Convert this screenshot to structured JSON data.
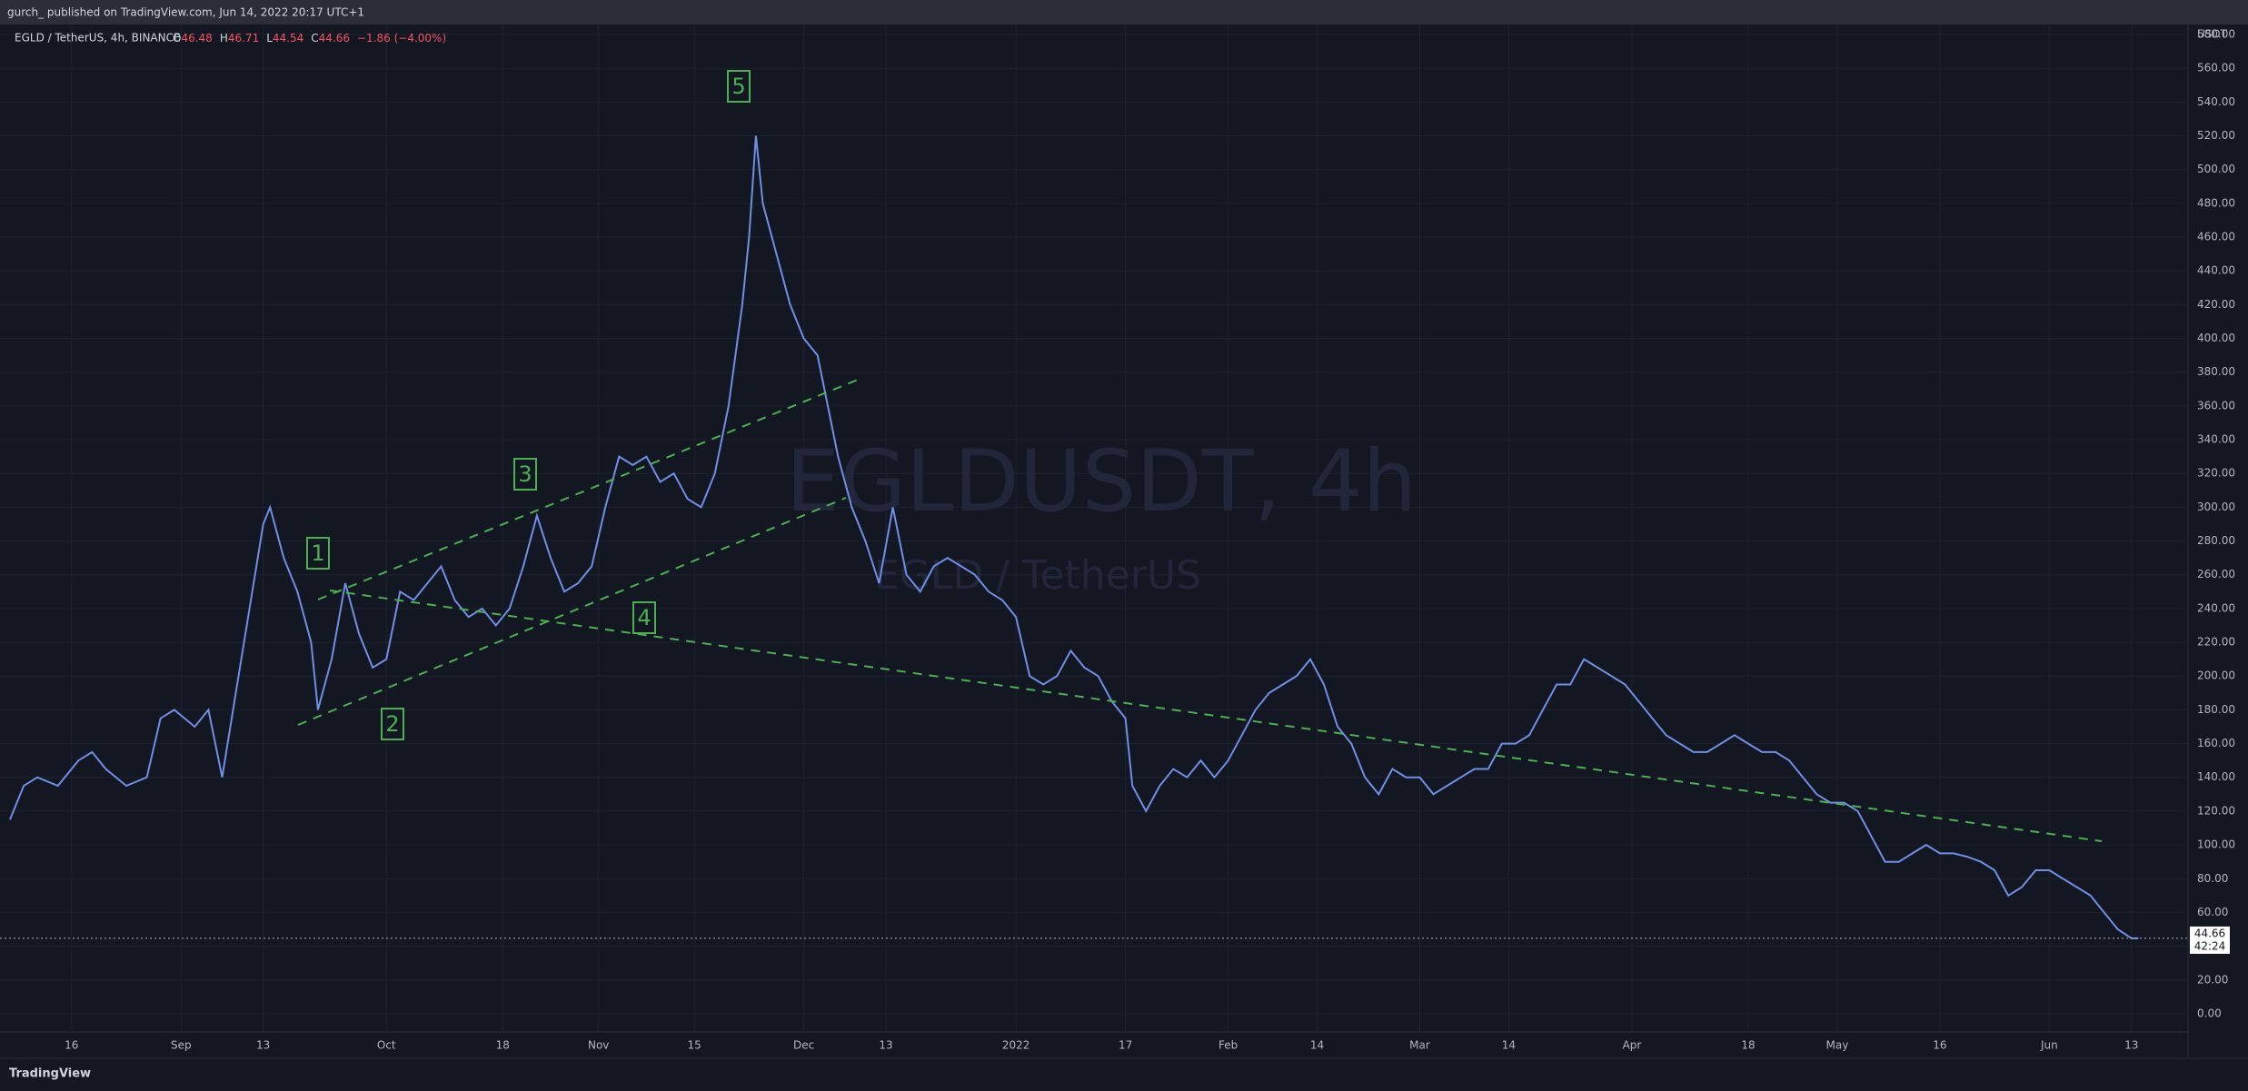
{
  "header": "gurch_ published on TradingView.com, Jun 14, 2022 20:17 UTC+1",
  "footer": "TradingView",
  "chart_data": {
    "type": "line",
    "title": "EGLDUSDT, 4h",
    "subtitle": "EGLD / TetherUS",
    "symbol": "EGLD / TetherUS, 4h, BINANCE",
    "ohlc": [
      {
        "label": "O",
        "value": 46.48
      },
      {
        "label": "H",
        "value": 46.71
      },
      {
        "label": "L",
        "value": 44.54
      },
      {
        "label": "C",
        "value": 44.66
      }
    ],
    "change_label": "−1.86 (−4.00%)",
    "y_unit": "USDT",
    "last_price": 44.66,
    "countdown": "42:24",
    "color": "#6f8fe6",
    "grid": true,
    "annotations": [
      "1",
      "2",
      "3",
      "4",
      "5"
    ],
    "x": [
      6,
      8,
      10,
      13,
      16,
      18,
      20,
      23,
      26,
      28,
      30,
      33,
      35,
      37,
      39,
      41,
      43,
      44,
      46,
      48,
      50,
      51,
      53,
      55,
      57,
      59,
      61,
      63,
      65,
      67,
      69,
      71,
      73,
      75,
      77,
      79,
      81,
      83,
      85,
      87,
      89,
      91,
      93,
      95,
      97,
      99,
      101,
      103,
      105,
      107,
      109,
      111,
      113,
      114,
      115,
      116,
      118,
      120,
      122,
      124,
      126,
      127,
      129,
      131,
      133,
      135,
      137,
      139,
      141,
      143,
      145,
      147,
      149,
      151,
      153,
      155,
      157,
      159,
      161,
      163,
      165,
      167,
      169,
      170,
      172,
      174,
      176,
      178,
      180,
      182,
      184,
      186,
      188,
      190,
      192,
      194,
      196,
      198,
      200,
      202,
      204,
      206,
      208,
      210,
      212,
      214,
      216,
      218,
      220,
      222,
      224,
      226,
      228,
      230,
      232,
      234,
      236,
      238,
      240,
      242,
      244,
      246,
      248,
      250,
      252,
      254,
      256,
      258,
      260,
      262,
      264,
      266,
      268,
      270,
      272,
      274,
      276,
      278,
      280,
      282,
      284,
      286,
      288,
      290,
      292,
      294,
      296,
      298,
      300,
      302,
      304,
      306,
      308,
      310,
      312,
      314,
      316,
      317
    ],
    "values": [
      115,
      135,
      140,
      135,
      150,
      155,
      145,
      135,
      140,
      175,
      180,
      170,
      180,
      140,
      190,
      240,
      290,
      300,
      270,
      250,
      220,
      180,
      210,
      255,
      225,
      205,
      210,
      250,
      245,
      255,
      265,
      245,
      235,
      240,
      230,
      240,
      265,
      295,
      270,
      250,
      255,
      265,
      300,
      330,
      325,
      330,
      315,
      320,
      305,
      300,
      320,
      360,
      420,
      460,
      520,
      480,
      450,
      420,
      400,
      390,
      350,
      330,
      300,
      280,
      255,
      300,
      260,
      250,
      265,
      270,
      265,
      260,
      250,
      245,
      235,
      200,
      195,
      200,
      215,
      205,
      200,
      185,
      175,
      135,
      120,
      135,
      145,
      140,
      150,
      140,
      150,
      165,
      180,
      190,
      195,
      200,
      210,
      195,
      170,
      160,
      140,
      130,
      145,
      140,
      140,
      130,
      135,
      140,
      145,
      145,
      160,
      160,
      165,
      180,
      195,
      195,
      210,
      205,
      200,
      195,
      185,
      175,
      165,
      160,
      155,
      155,
      160,
      165,
      160,
      155,
      155,
      150,
      140,
      130,
      125,
      125,
      120,
      105,
      90,
      90,
      95,
      100,
      95,
      95,
      93,
      90,
      85,
      70,
      75,
      85,
      85,
      80,
      75,
      70,
      60,
      50,
      44.66,
      44.66
    ],
    "xlim": [
      6,
      324
    ],
    "xticks": [
      {
        "value": 15,
        "label": "16"
      },
      {
        "value": 31,
        "label": "Sep"
      },
      {
        "value": 43,
        "label": "13"
      },
      {
        "value": 61,
        "label": "Oct"
      },
      {
        "value": 78,
        "label": "18"
      },
      {
        "value": 92,
        "label": "Nov"
      },
      {
        "value": 106,
        "label": "15"
      },
      {
        "value": 122,
        "label": "Dec"
      },
      {
        "value": 134,
        "label": "13"
      },
      {
        "value": 153,
        "label": "2022"
      },
      {
        "value": 169,
        "label": "17"
      },
      {
        "value": 184,
        "label": "Feb"
      },
      {
        "value": 197,
        "label": "14"
      },
      {
        "value": 212,
        "label": "Mar"
      },
      {
        "value": 225,
        "label": "14"
      },
      {
        "value": 243,
        "label": "Apr"
      },
      {
        "value": 260,
        "label": "18"
      },
      {
        "value": 273,
        "label": "May"
      },
      {
        "value": 288,
        "label": "16"
      },
      {
        "value": 304,
        "label": "Jun"
      },
      {
        "value": 316,
        "label": "13"
      }
    ],
    "ylim": [
      -10.8,
      585.4
    ],
    "yticks": [
      {
        "value": 0,
        "label": "0.00"
      },
      {
        "value": 20,
        "label": "20.00"
      },
      {
        "value": 40,
        "label": "40.00"
      },
      {
        "value": 60,
        "label": "60.00"
      },
      {
        "value": 80,
        "label": "80.00"
      },
      {
        "value": 100,
        "label": "100.00"
      },
      {
        "value": 120,
        "label": "120.00"
      },
      {
        "value": 140,
        "label": "140.00"
      },
      {
        "value": 160,
        "label": "160.00"
      },
      {
        "value": 180,
        "label": "180.00"
      },
      {
        "value": 200,
        "label": "200.00"
      },
      {
        "value": 220,
        "label": "220.00"
      },
      {
        "value": 240,
        "label": "240.00"
      },
      {
        "value": 260,
        "label": "260.00"
      },
      {
        "value": 280,
        "label": "280.00"
      },
      {
        "value": 300,
        "label": "300.00"
      },
      {
        "value": 320,
        "label": "320.00"
      },
      {
        "value": 340,
        "label": "340.00"
      },
      {
        "value": 360,
        "label": "360.00"
      },
      {
        "value": 380,
        "label": "380.00"
      },
      {
        "value": 400,
        "label": "400.00"
      },
      {
        "value": 420,
        "label": "420.00"
      },
      {
        "value": 440,
        "label": "440.00"
      },
      {
        "value": 460,
        "label": "460.00"
      },
      {
        "value": 480,
        "label": "480.00"
      },
      {
        "value": 500,
        "label": "500.00"
      },
      {
        "value": 520,
        "label": "520.00"
      },
      {
        "value": 540,
        "label": "540.00"
      },
      {
        "value": 560,
        "label": "560.00"
      },
      {
        "value": 580,
        "label": "580.00"
      }
    ]
  }
}
